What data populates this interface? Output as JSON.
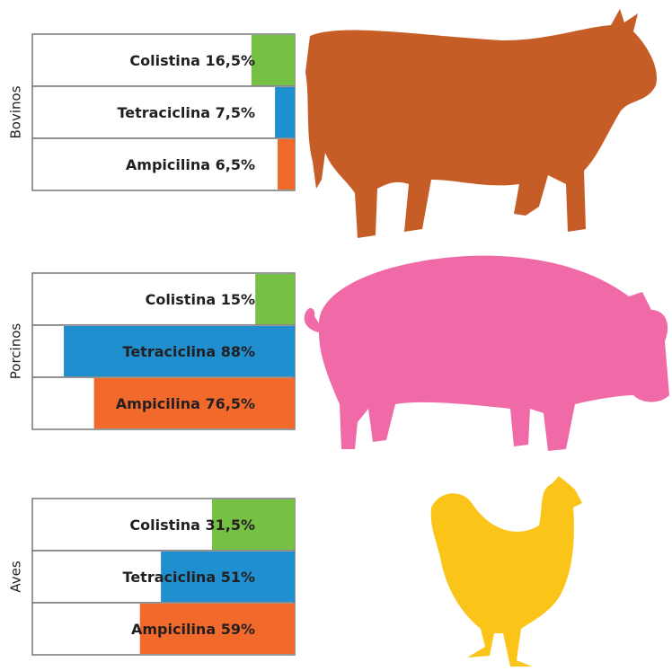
{
  "chart_data": [
    {
      "type": "bar",
      "title": "Bovinos",
      "categories": [
        "Colistina",
        "Tetraciclina",
        "Ampicilina"
      ],
      "values": [
        16.5,
        7.5,
        6.5
      ],
      "value_labels": [
        "16,5%",
        "7,5%",
        "6,5%"
      ],
      "colors": [
        "#76c043",
        "#1f8fd0",
        "#f26a2b"
      ],
      "xlim": [
        0,
        100
      ]
    },
    {
      "type": "bar",
      "title": "Porcinos",
      "categories": [
        "Colistina",
        "Tetraciclina",
        "Ampicilina"
      ],
      "values": [
        15,
        88,
        76.5
      ],
      "value_labels": [
        "15%",
        "88%",
        "76,5%"
      ],
      "colors": [
        "#76c043",
        "#1f8fd0",
        "#f26a2b"
      ],
      "xlim": [
        0,
        100
      ]
    },
    {
      "type": "bar",
      "title": "Aves",
      "categories": [
        "Colistina",
        "Tetraciclina",
        "Ampicilina"
      ],
      "values": [
        31.5,
        51,
        59
      ],
      "value_labels": [
        "31,5%",
        "51%",
        "59%"
      ],
      "colors": [
        "#76c043",
        "#1f8fd0",
        "#f26a2b"
      ],
      "xlim": [
        0,
        100
      ]
    }
  ]
}
